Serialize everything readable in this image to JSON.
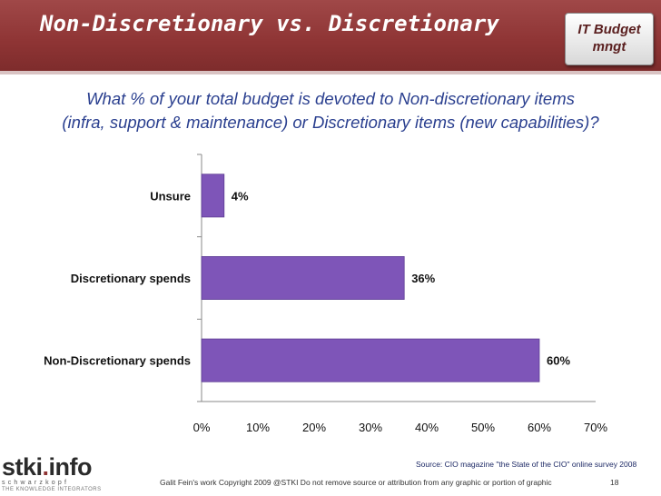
{
  "header": {
    "title": "Non-Discretionary vs. Discretionary",
    "badge_line1": "IT Budget",
    "badge_line2": "mngt"
  },
  "question": {
    "line1": "What % of your total budget is devoted to Non-discretionary items",
    "line2": "(infra, support & maintenance) or Discretionary items (new capabilities)?"
  },
  "chart_data": {
    "type": "bar",
    "orientation": "horizontal",
    "categories": [
      "Unsure",
      "Discretionary spends",
      "Non-Discretionary spends"
    ],
    "values": [
      4,
      36,
      60
    ],
    "value_labels": [
      "4%",
      "36%",
      "60%"
    ],
    "xlim": [
      0,
      70
    ],
    "x_ticks": [
      0,
      10,
      20,
      30,
      40,
      50,
      60,
      70
    ],
    "x_tick_labels": [
      "0%",
      "10%",
      "20%",
      "30%",
      "40%",
      "50%",
      "60%",
      "70%"
    ],
    "bar_color": "#7e55b8",
    "grid": false,
    "legend": "none"
  },
  "source": "Source: CIO magazine \"the State of the CIO\" online survey 2008",
  "logo": {
    "main": "stki",
    "dot": ".",
    "suffix": "info",
    "sub": "schwarzkopf",
    "tag": "THE KNOWLEDGE INTEGRATORS"
  },
  "footer": {
    "text": "Galit Fein's work  Copyright 2009 @STKI    Do not remove source or attribution  from any graphic or portion of graphic",
    "page": "18"
  },
  "colors": {
    "header_bg": "#8e3434",
    "question_text": "#2a3f8f",
    "bar": "#7e55b8"
  }
}
